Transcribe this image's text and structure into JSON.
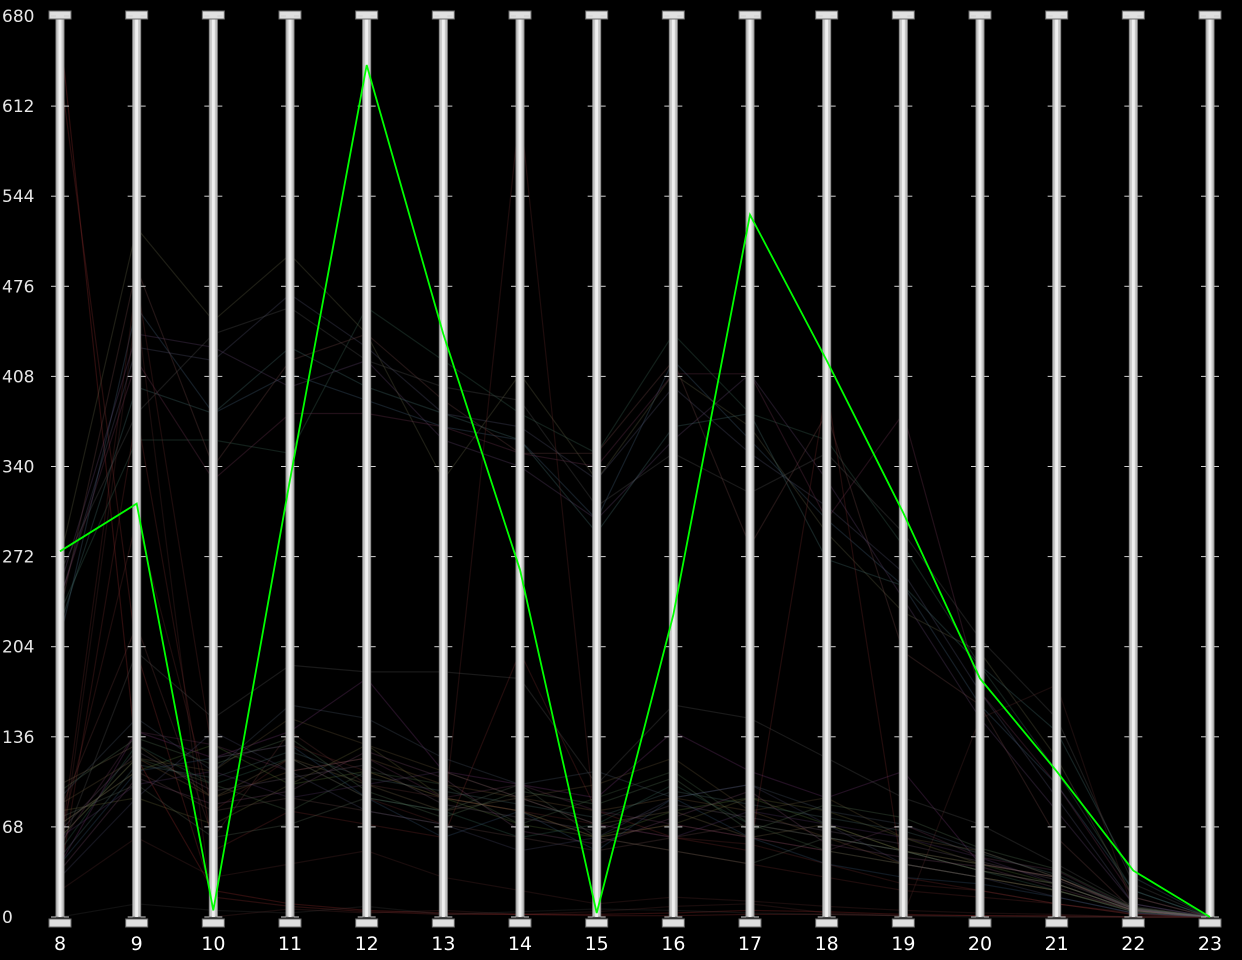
{
  "chart_data": {
    "type": "parallel-coordinates",
    "title": "",
    "axes": [
      "8",
      "9",
      "10",
      "11",
      "12",
      "13",
      "14",
      "15",
      "16",
      "17",
      "18",
      "19",
      "20",
      "21",
      "22",
      "23"
    ],
    "ylim": [
      0,
      680
    ],
    "yticks": [
      "0",
      "68",
      "136",
      "204",
      "272",
      "340",
      "408",
      "476",
      "544",
      "612",
      "680"
    ],
    "grid": false,
    "legend": "none",
    "highlight_color": "#00ff00",
    "line_alpha": 0.28,
    "highlighted_series": {
      "values": [
        276,
        312,
        5,
        330,
        643,
        440,
        262,
        3,
        228,
        530,
        420,
        305,
        180,
        110,
        35,
        0
      ]
    },
    "background_series": [
      {
        "color": "#a03030",
        "values": [
          670,
          120,
          20,
          10,
          5,
          3,
          2,
          2,
          3,
          5,
          4,
          2,
          1,
          1,
          0,
          0
        ]
      },
      {
        "color": "#903030",
        "values": [
          640,
          200,
          15,
          8,
          4,
          2,
          2,
          1,
          1,
          2,
          2,
          1,
          1,
          0,
          0,
          0
        ]
      },
      {
        "color": "#4a6a8a",
        "values": [
          210,
          460,
          380,
          410,
          390,
          370,
          360,
          300,
          420,
          360,
          300,
          250,
          160,
          100,
          20,
          0
        ]
      },
      {
        "color": "#5a5a7a",
        "values": [
          240,
          430,
          420,
          470,
          430,
          380,
          370,
          330,
          400,
          350,
          310,
          260,
          170,
          90,
          10,
          0
        ]
      },
      {
        "color": "#6a4a7a",
        "values": [
          250,
          440,
          430,
          400,
          420,
          360,
          340,
          300,
          360,
          410,
          330,
          240,
          150,
          80,
          10,
          0
        ]
      },
      {
        "color": "#3f6f5f",
        "values": [
          230,
          360,
          360,
          350,
          460,
          420,
          380,
          350,
          440,
          380,
          360,
          280,
          190,
          110,
          20,
          0
        ]
      },
      {
        "color": "#6a6a4a",
        "values": [
          270,
          520,
          450,
          500,
          440,
          330,
          410,
          330,
          410,
          370,
          290,
          230,
          200,
          120,
          15,
          0
        ]
      },
      {
        "color": "#7a4a4a",
        "values": [
          230,
          490,
          340,
          420,
          440,
          390,
          350,
          350,
          420,
          280,
          380,
          200,
          160,
          60,
          5,
          0
        ]
      },
      {
        "color": "#4a7a7a",
        "values": [
          220,
          400,
          380,
          430,
          400,
          380,
          360,
          290,
          370,
          380,
          270,
          250,
          190,
          140,
          30,
          0
        ]
      },
      {
        "color": "#5a5a5a",
        "values": [
          260,
          380,
          440,
          460,
          420,
          400,
          390,
          310,
          350,
          320,
          350,
          290,
          210,
          150,
          25,
          0
        ]
      },
      {
        "color": "#7a3a5a",
        "values": [
          240,
          420,
          330,
          380,
          380,
          370,
          350,
          340,
          410,
          410,
          300,
          380,
          170,
          100,
          15,
          0
        ]
      },
      {
        "color": "#6a2a2a",
        "values": [
          60,
          300,
          80,
          120,
          90,
          70,
          610,
          60,
          50,
          40,
          30,
          20,
          15,
          10,
          2,
          0
        ]
      },
      {
        "color": "#6a2a2a",
        "values": [
          50,
          480,
          120,
          130,
          110,
          90,
          80,
          70,
          60,
          55,
          40,
          25,
          20,
          10,
          3,
          0
        ]
      },
      {
        "color": "#5a2a2a",
        "values": [
          40,
          460,
          0,
          6,
          3,
          5,
          2,
          4,
          8,
          10,
          3,
          1,
          150,
          175,
          5,
          0
        ]
      },
      {
        "color": "#7a2a2a",
        "values": [
          30,
          380,
          50,
          80,
          70,
          60,
          200,
          80,
          60,
          50,
          400,
          30,
          20,
          10,
          2,
          0
        ]
      },
      {
        "color": "#6a3a3a",
        "values": [
          80,
          220,
          60,
          140,
          100,
          90,
          80,
          60,
          70,
          60,
          50,
          40,
          30,
          20,
          4,
          0
        ]
      },
      {
        "color": "#7a5a3a",
        "values": [
          60,
          120,
          90,
          110,
          120,
          100,
          90,
          80,
          90,
          80,
          60,
          40,
          30,
          20,
          5,
          0
        ]
      },
      {
        "color": "#5a7a3a",
        "values": [
          70,
          110,
          130,
          100,
          110,
          90,
          70,
          60,
          80,
          90,
          70,
          50,
          40,
          25,
          5,
          0
        ]
      },
      {
        "color": "#3a6a5a",
        "values": [
          50,
          130,
          100,
          120,
          90,
          80,
          60,
          70,
          100,
          70,
          60,
          50,
          35,
          20,
          4,
          0
        ]
      },
      {
        "color": "#7a3a7a",
        "values": [
          40,
          140,
          120,
          140,
          180,
          110,
          100,
          90,
          140,
          110,
          90,
          110,
          40,
          30,
          6,
          0
        ]
      },
      {
        "color": "#5a3a6a",
        "values": [
          60,
          100,
          110,
          90,
          100,
          110,
          90,
          70,
          60,
          80,
          70,
          60,
          45,
          25,
          5,
          0
        ]
      },
      {
        "color": "#6a6a3a",
        "values": [
          80,
          90,
          70,
          100,
          130,
          90,
          80,
          60,
          70,
          90,
          80,
          60,
          40,
          30,
          6,
          0
        ]
      },
      {
        "color": "#4a5a6a",
        "values": [
          90,
          150,
          110,
          160,
          150,
          120,
          100,
          110,
          90,
          100,
          80,
          70,
          50,
          30,
          7,
          0
        ]
      },
      {
        "color": "#5a5a5a",
        "values": [
          50,
          200,
          150,
          190,
          185,
          185,
          180,
          100,
          160,
          150,
          120,
          90,
          70,
          40,
          8,
          0
        ]
      },
      {
        "color": "#6a4a4a",
        "values": [
          70,
          110,
          80,
          90,
          80,
          70,
          60,
          50,
          60,
          70,
          60,
          50,
          40,
          30,
          5,
          0
        ]
      },
      {
        "color": "#4a6a4a",
        "values": [
          60,
          120,
          100,
          80,
          110,
          100,
          70,
          90,
          110,
          70,
          50,
          40,
          30,
          20,
          4,
          0
        ]
      },
      {
        "color": "#7a6a4a",
        "values": [
          100,
          130,
          90,
          120,
          100,
          80,
          90,
          70,
          80,
          60,
          70,
          50,
          35,
          25,
          5,
          0
        ]
      },
      {
        "color": "#3a5a7a",
        "values": [
          40,
          110,
          120,
          130,
          90,
          60,
          80,
          50,
          90,
          60,
          40,
          30,
          25,
          15,
          3,
          0
        ]
      },
      {
        "color": "#6a3a5a",
        "values": [
          55,
          140,
          130,
          110,
          120,
          90,
          100,
          80,
          70,
          60,
          50,
          70,
          45,
          35,
          6,
          0
        ]
      },
      {
        "color": "#5a6a5a",
        "values": [
          75,
          100,
          60,
          70,
          90,
          80,
          100,
          60,
          50,
          40,
          60,
          50,
          35,
          25,
          5,
          0
        ]
      },
      {
        "color": "#6a5a3a",
        "values": [
          85,
          120,
          110,
          150,
          130,
          110,
          90,
          100,
          120,
          80,
          90,
          60,
          50,
          30,
          7,
          0
        ]
      },
      {
        "color": "#4a4a6a",
        "values": [
          30,
          90,
          140,
          110,
          80,
          70,
          50,
          60,
          90,
          100,
          70,
          40,
          30,
          15,
          3,
          0
        ]
      },
      {
        "color": "#3a3a3a",
        "values": [
          0,
          10,
          5,
          3,
          8,
          2,
          4,
          6,
          5,
          3,
          2,
          1,
          0,
          0,
          0,
          0
        ]
      },
      {
        "color": "#5a2a2a",
        "values": [
          20,
          60,
          30,
          40,
          50,
          30,
          20,
          10,
          15,
          12,
          8,
          5,
          3,
          2,
          0,
          0
        ]
      },
      {
        "color": "#6a5a6a",
        "values": [
          65,
          125,
          95,
          105,
          115,
          85,
          75,
          65,
          85,
          75,
          65,
          55,
          42,
          28,
          6,
          0
        ]
      },
      {
        "color": "#4a6a6a",
        "values": [
          45,
          115,
          105,
          125,
          105,
          95,
          85,
          75,
          95,
          85,
          75,
          65,
          48,
          32,
          6,
          0
        ]
      },
      {
        "color": "#7a4a6a",
        "values": [
          35,
          105,
          85,
          95,
          125,
          105,
          65,
          55,
          75,
          95,
          55,
          45,
          38,
          22,
          5,
          0
        ]
      },
      {
        "color": "#5a7a5a",
        "values": [
          95,
          135,
          115,
          135,
          95,
          75,
          95,
          85,
          105,
          65,
          85,
          75,
          52,
          36,
          7,
          0
        ]
      }
    ]
  }
}
